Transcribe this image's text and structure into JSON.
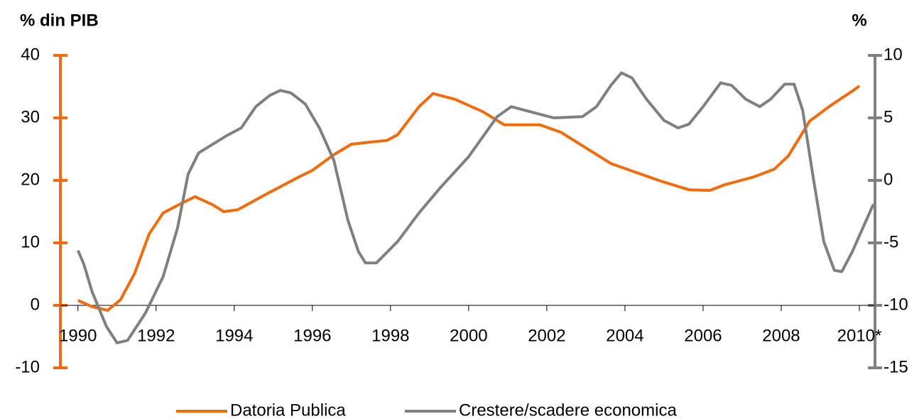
{
  "chart_data": {
    "type": "line",
    "y_axis_label": "% din PIB",
    "y2_axis_label": "%",
    "xlim": [
      1989.55,
      2010.4
    ],
    "xticks": [
      1990,
      1992,
      1994,
      1996,
      1998,
      2000,
      2002,
      2004,
      2006,
      2008,
      {
        "value": 2010,
        "label": "2010*"
      }
    ],
    "ylim": [
      -10,
      40
    ],
    "yticks": [
      -10,
      0,
      10,
      20,
      30,
      40
    ],
    "y2lim": [
      -15,
      10
    ],
    "y2ticks": [
      -15,
      -10,
      -5,
      0,
      5,
      10
    ],
    "y_axis_color": "#f26c0d",
    "y2_axis_color": "#808080",
    "legend": "bottom",
    "series": [
      {
        "name": "Datoria Publica",
        "color": "#f26c0d",
        "axis": "y",
        "x": [
          1990.0,
          1990.36,
          1990.76,
          1991.09,
          1991.45,
          1991.82,
          1992.18,
          1992.64,
          1993.0,
          1993.45,
          1993.73,
          1994.09,
          1994.73,
          1995.64,
          1996.0,
          1996.55,
          1997.0,
          1997.45,
          1997.91,
          1998.18,
          1998.73,
          1999.09,
          1999.64,
          2000.36,
          2000.91,
          2001.82,
          2002.36,
          2003.64,
          2004.91,
          2005.64,
          2006.18,
          2006.55,
          2007.27,
          2007.82,
          2008.18,
          2008.73,
          2009.27,
          2009.82,
          2010.0
        ],
        "values": [
          0.8,
          -0.2,
          -0.8,
          0.9,
          5.1,
          11.4,
          14.8,
          16.3,
          17.4,
          16.1,
          15.0,
          15.3,
          17.5,
          20.5,
          21.6,
          24.1,
          25.8,
          26.1,
          26.4,
          27.3,
          31.8,
          33.9,
          33.0,
          31.0,
          28.9,
          28.9,
          27.7,
          22.7,
          19.9,
          18.5,
          18.4,
          19.3,
          20.5,
          21.8,
          23.9,
          29.5,
          32.0,
          34.3,
          35.1
        ]
      },
      {
        "name": "Crestere/scadere economica",
        "color": "#808080",
        "axis": "y2",
        "x": [
          1990.0,
          1990.15,
          1990.36,
          1990.73,
          1991.0,
          1991.27,
          1991.73,
          1992.18,
          1992.55,
          1992.82,
          1993.09,
          1993.82,
          1994.18,
          1994.55,
          1994.91,
          1995.18,
          1995.45,
          1995.82,
          1996.18,
          1996.55,
          1996.91,
          1997.18,
          1997.36,
          1997.64,
          1998.18,
          1998.73,
          1999.27,
          2000.0,
          2000.73,
          2001.09,
          2001.45,
          2002.18,
          2002.91,
          2003.27,
          2003.64,
          2003.91,
          2004.18,
          2004.55,
          2005.0,
          2005.36,
          2005.64,
          2006.0,
          2006.45,
          2006.73,
          2007.09,
          2007.45,
          2007.73,
          2008.09,
          2008.33,
          2008.55,
          2008.82,
          2009.09,
          2009.36,
          2009.55,
          2009.82,
          2010.09,
          2010.36
        ],
        "values": [
          -5.6,
          -6.7,
          -8.9,
          -11.7,
          -13.0,
          -12.8,
          -10.6,
          -7.7,
          -3.8,
          0.5,
          2.2,
          3.6,
          4.2,
          5.9,
          6.8,
          7.2,
          7.0,
          6.1,
          4.2,
          1.6,
          -3.2,
          -5.7,
          -6.6,
          -6.6,
          -4.9,
          -2.6,
          -0.6,
          1.9,
          5.1,
          5.9,
          5.6,
          5.0,
          5.1,
          5.9,
          7.6,
          8.6,
          8.2,
          6.5,
          4.8,
          4.2,
          4.5,
          5.9,
          7.8,
          7.6,
          6.5,
          5.9,
          6.5,
          7.7,
          7.7,
          5.6,
          0.2,
          -4.9,
          -7.2,
          -7.3,
          -5.7,
          -3.8,
          -1.9
        ]
      }
    ]
  }
}
